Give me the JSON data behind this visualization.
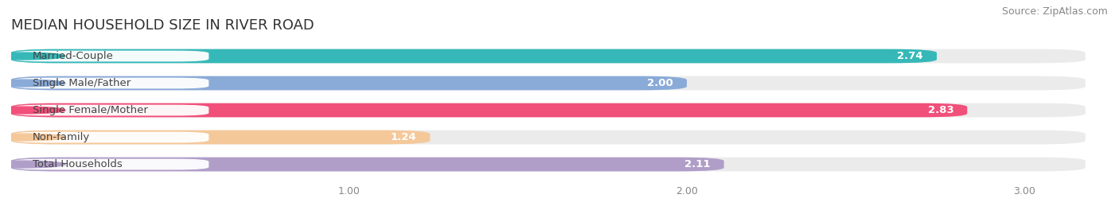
{
  "title": "MEDIAN HOUSEHOLD SIZE IN RIVER ROAD",
  "source": "Source: ZipAtlas.com",
  "categories": [
    "Married-Couple",
    "Single Male/Father",
    "Single Female/Mother",
    "Non-family",
    "Total Households"
  ],
  "values": [
    2.74,
    2.0,
    2.83,
    1.24,
    2.11
  ],
  "bar_colors": [
    "#36b8b8",
    "#8aaad8",
    "#f0507a",
    "#f5c89a",
    "#b09ec8"
  ],
  "bar_bg_color": "#ebebeb",
  "xlim": [
    0,
    3.18
  ],
  "xstart": 0.0,
  "xticks": [
    1.0,
    2.0,
    3.0
  ],
  "bar_height": 0.52,
  "label_fontsize": 9.5,
  "value_fontsize": 9.5,
  "title_fontsize": 13,
  "source_fontsize": 9,
  "background_color": "#ffffff",
  "text_color": "#444444",
  "grid_color": "#ffffff",
  "tick_color": "#888888"
}
